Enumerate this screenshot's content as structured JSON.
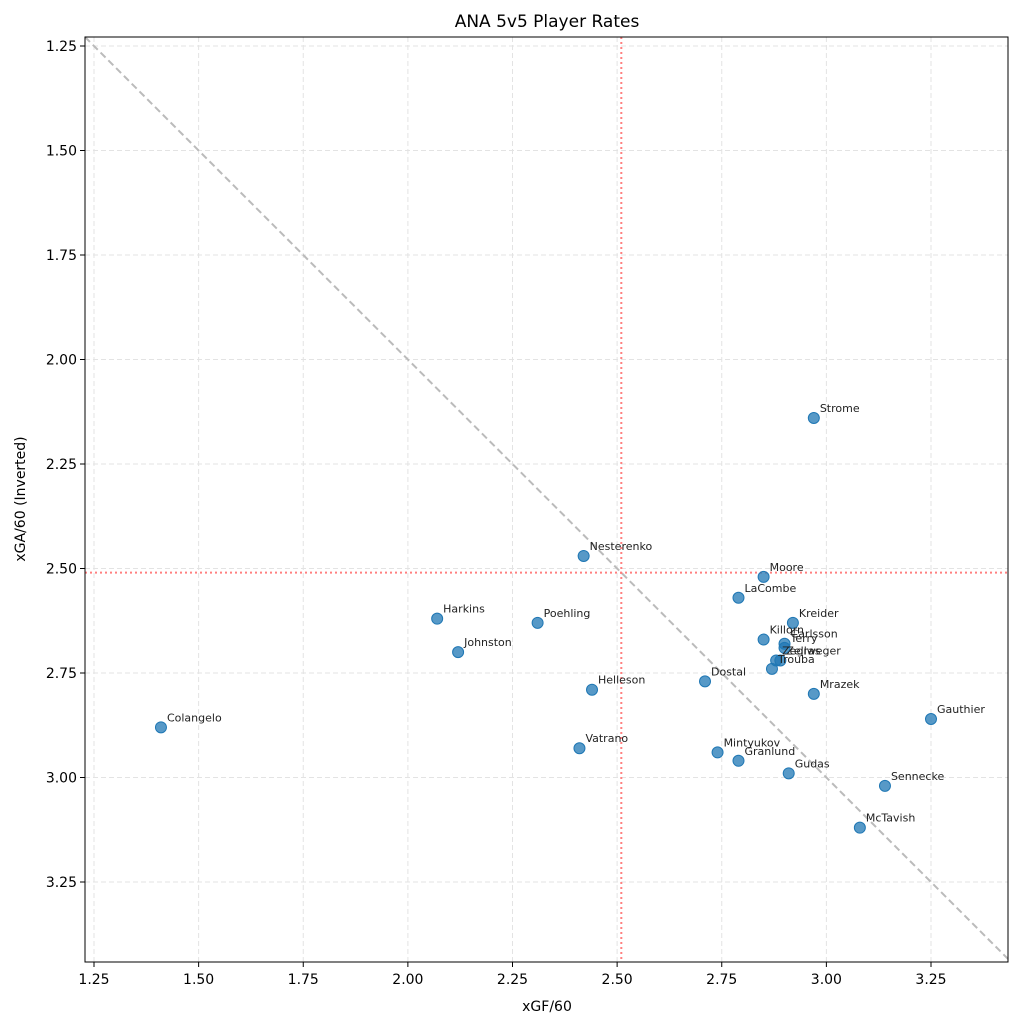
{
  "chart_data": {
    "type": "scatter",
    "title": "ANA 5v5 Player Rates",
    "xlabel": "xGF/60",
    "ylabel": "xGA/60 (Inverted)",
    "xlim": [
      1.24,
      3.44
    ],
    "ylim": [
      3.44,
      1.24
    ],
    "y_inverted": true,
    "grid": true,
    "x_ticks": [
      1.25,
      1.5,
      1.75,
      2.0,
      2.25,
      2.5,
      2.75,
      3.0,
      3.25
    ],
    "y_ticks": [
      1.25,
      1.5,
      1.75,
      2.0,
      2.25,
      2.5,
      2.75,
      3.0,
      3.25
    ],
    "reference_lines": {
      "x_median": 2.51,
      "y_median": 2.51,
      "diagonal": "y = x (dashed gray)"
    },
    "marker_color": "#1f77b4",
    "points": [
      {
        "name": "Strome",
        "x": 2.97,
        "y": 2.14
      },
      {
        "name": "Nesterenko",
        "x": 2.42,
        "y": 2.47
      },
      {
        "name": "Moore",
        "x": 2.85,
        "y": 2.52
      },
      {
        "name": "LaCombe",
        "x": 2.79,
        "y": 2.57
      },
      {
        "name": "Kreider",
        "x": 2.92,
        "y": 2.63
      },
      {
        "name": "Harkins",
        "x": 2.07,
        "y": 2.62
      },
      {
        "name": "Poehling",
        "x": 2.31,
        "y": 2.63
      },
      {
        "name": "Johnston",
        "x": 2.12,
        "y": 2.7
      },
      {
        "name": "Killorn",
        "x": 2.85,
        "y": 2.67
      },
      {
        "name": "Carlsson",
        "x": 2.9,
        "y": 2.68
      },
      {
        "name": "Terry",
        "x": 2.9,
        "y": 2.69
      },
      {
        "name": "Zellweger",
        "x": 2.89,
        "y": 2.72
      },
      {
        "name": "Zegras",
        "x": 2.88,
        "y": 2.72
      },
      {
        "name": "Trouba",
        "x": 2.87,
        "y": 2.74
      },
      {
        "name": "Dostal",
        "x": 2.71,
        "y": 2.77
      },
      {
        "name": "Helleson",
        "x": 2.44,
        "y": 2.79
      },
      {
        "name": "Mrazek",
        "x": 2.97,
        "y": 2.8
      },
      {
        "name": "Gauthier",
        "x": 3.25,
        "y": 2.86
      },
      {
        "name": "Colangelo",
        "x": 1.41,
        "y": 2.88
      },
      {
        "name": "Vatrano",
        "x": 2.41,
        "y": 2.93
      },
      {
        "name": "Mintyukov",
        "x": 2.74,
        "y": 2.94
      },
      {
        "name": "Granlund",
        "x": 2.79,
        "y": 2.96
      },
      {
        "name": "Gudas",
        "x": 2.91,
        "y": 2.99
      },
      {
        "name": "Sennecke",
        "x": 3.14,
        "y": 3.02
      },
      {
        "name": "McTavish",
        "x": 3.08,
        "y": 3.12
      }
    ]
  }
}
